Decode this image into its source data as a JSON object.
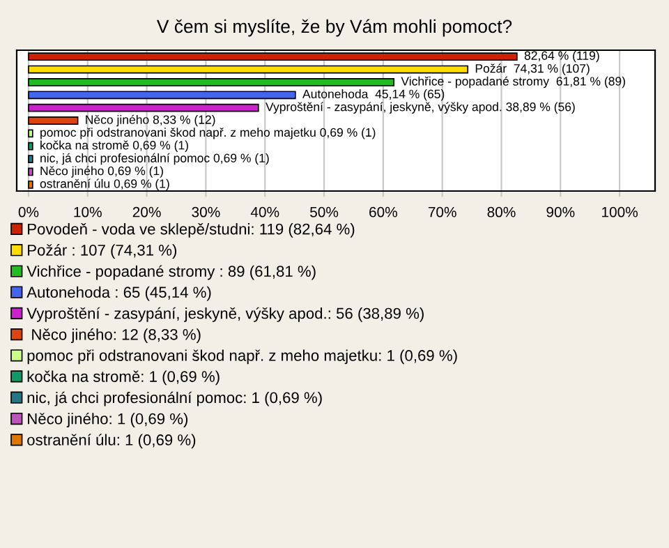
{
  "chart_data": {
    "type": "bar",
    "orientation": "horizontal",
    "title": "V čem si myslíte, že by Vám mohli pomoct?",
    "categories": [
      null,
      null,
      null,
      null,
      null,
      null,
      null,
      null,
      null,
      null,
      null
    ],
    "series": [
      {
        "name": "Povodeň - voda ve sklepě/studni: 119 (82,64 %)",
        "color": "#cc2200",
        "values": [
          82.64,
          null,
          null,
          null,
          null,
          null,
          null,
          null,
          null,
          null,
          null
        ],
        "value_labels": [
          "82,64 % (119)",
          null,
          null,
          null,
          null,
          null,
          null,
          null,
          null,
          null,
          null
        ]
      },
      {
        "name": "Požár : 107 (74,31 %)",
        "color": "#ffdd00",
        "values": [
          null,
          74.31,
          null,
          null,
          null,
          null,
          null,
          null,
          null,
          null,
          null
        ],
        "value_labels": [
          null,
          "Požár  74,31 % (107)",
          null,
          null,
          null,
          null,
          null,
          null,
          null,
          null,
          null
        ]
      },
      {
        "name": "Vichřice - popadané stromy : 89 (61,81 %)",
        "color": "#22bb22",
        "values": [
          null,
          null,
          61.81,
          null,
          null,
          null,
          null,
          null,
          null,
          null,
          null
        ],
        "value_labels": [
          null,
          null,
          "Vichřice - popadané stromy  61,81 % (89)",
          null,
          null,
          null,
          null,
          null,
          null,
          null,
          null
        ]
      },
      {
        "name": "Autonehoda : 65 (45,14 %)",
        "color": "#4466ee",
        "values": [
          null,
          null,
          null,
          45.14,
          null,
          null,
          null,
          null,
          null,
          null,
          null
        ],
        "value_labels": [
          null,
          null,
          null,
          "Autonehoda  45,14 % (65)",
          null,
          null,
          null,
          null,
          null,
          null,
          null
        ]
      },
      {
        "name": "Vyproštění - zasypání, jeskyně, výšky apod.: 56 (38,89 %)",
        "color": "#cc22cc",
        "values": [
          null,
          null,
          null,
          null,
          38.89,
          null,
          null,
          null,
          null,
          null,
          null
        ],
        "value_labels": [
          null,
          null,
          null,
          null,
          "Vyproštění - zasypání, jeskyně, výšky apod. 38,89 % (56)",
          null,
          null,
          null,
          null,
          null,
          null
        ]
      },
      {
        "name": " Něco jiného: 12 (8,33 %)",
        "color": "#dd4411",
        "values": [
          null,
          null,
          null,
          null,
          null,
          8.33,
          null,
          null,
          null,
          null,
          null
        ],
        "value_labels": [
          null,
          null,
          null,
          null,
          null,
          "Něco jiného 8,33 % (12)",
          null,
          null,
          null,
          null,
          null
        ]
      },
      {
        "name": "pomoc při odstranovani škod např. z meho majetku: 1 (0,69 %)",
        "color": "#ccff88",
        "values": [
          null,
          null,
          null,
          null,
          null,
          null,
          0.69,
          null,
          null,
          null,
          null
        ],
        "value_labels": [
          null,
          null,
          null,
          null,
          null,
          null,
          "pomoc při odstranovani škod např. z meho majetku 0,69 % (1)",
          null,
          null,
          null,
          null
        ]
      },
      {
        "name": "kočka na stromě: 1 (0,69 %)",
        "color": "#119966",
        "values": [
          null,
          null,
          null,
          null,
          null,
          null,
          null,
          0.69,
          null,
          null,
          null
        ],
        "value_labels": [
          null,
          null,
          null,
          null,
          null,
          null,
          null,
          "kočka na stromě 0,69 % (1)",
          null,
          null,
          null
        ]
      },
      {
        "name": "nic, já chci profesionální pomoc: 1 (0,69 %)",
        "color": "#227788",
        "values": [
          null,
          null,
          null,
          null,
          null,
          null,
          null,
          null,
          0.69,
          null,
          null
        ],
        "value_labels": [
          null,
          null,
          null,
          null,
          null,
          null,
          null,
          null,
          "nic, já chci profesionální pomoc 0,69 % (1)",
          null,
          null
        ]
      },
      {
        "name": "Něco jiného: 1 (0,69 %)",
        "color": "#bb55bb",
        "values": [
          null,
          null,
          null,
          null,
          null,
          null,
          null,
          null,
          null,
          0.69,
          null
        ],
        "value_labels": [
          null,
          null,
          null,
          null,
          null,
          null,
          null,
          null,
          null,
          "Něco jiného 0,69 % (1)",
          null
        ]
      },
      {
        "name": "ostranění úlu: 1 (0,69 %)",
        "color": "#dd7700",
        "values": [
          null,
          null,
          null,
          null,
          null,
          null,
          null,
          null,
          null,
          null,
          0.69
        ],
        "value_labels": [
          null,
          null,
          null,
          null,
          null,
          null,
          null,
          null,
          null,
          null,
          "ostranění úlu 0,69 % (1)"
        ]
      }
    ],
    "xlim": [
      -2,
      106
    ],
    "xticks": [
      {
        "value": 0,
        "label": "0%"
      },
      {
        "value": 10,
        "label": "10%"
      },
      {
        "value": 20,
        "label": "20%"
      },
      {
        "value": 30,
        "label": "30%"
      },
      {
        "value": 40,
        "label": "40%"
      },
      {
        "value": 50,
        "label": "50%"
      },
      {
        "value": 60,
        "label": "60%"
      },
      {
        "value": 70,
        "label": "70%"
      },
      {
        "value": 80,
        "label": "80%"
      },
      {
        "value": 90,
        "label": "90%"
      },
      {
        "value": 100,
        "label": "100%"
      }
    ],
    "tick_labels": "x",
    "grid": "x",
    "legend": "bottom"
  }
}
